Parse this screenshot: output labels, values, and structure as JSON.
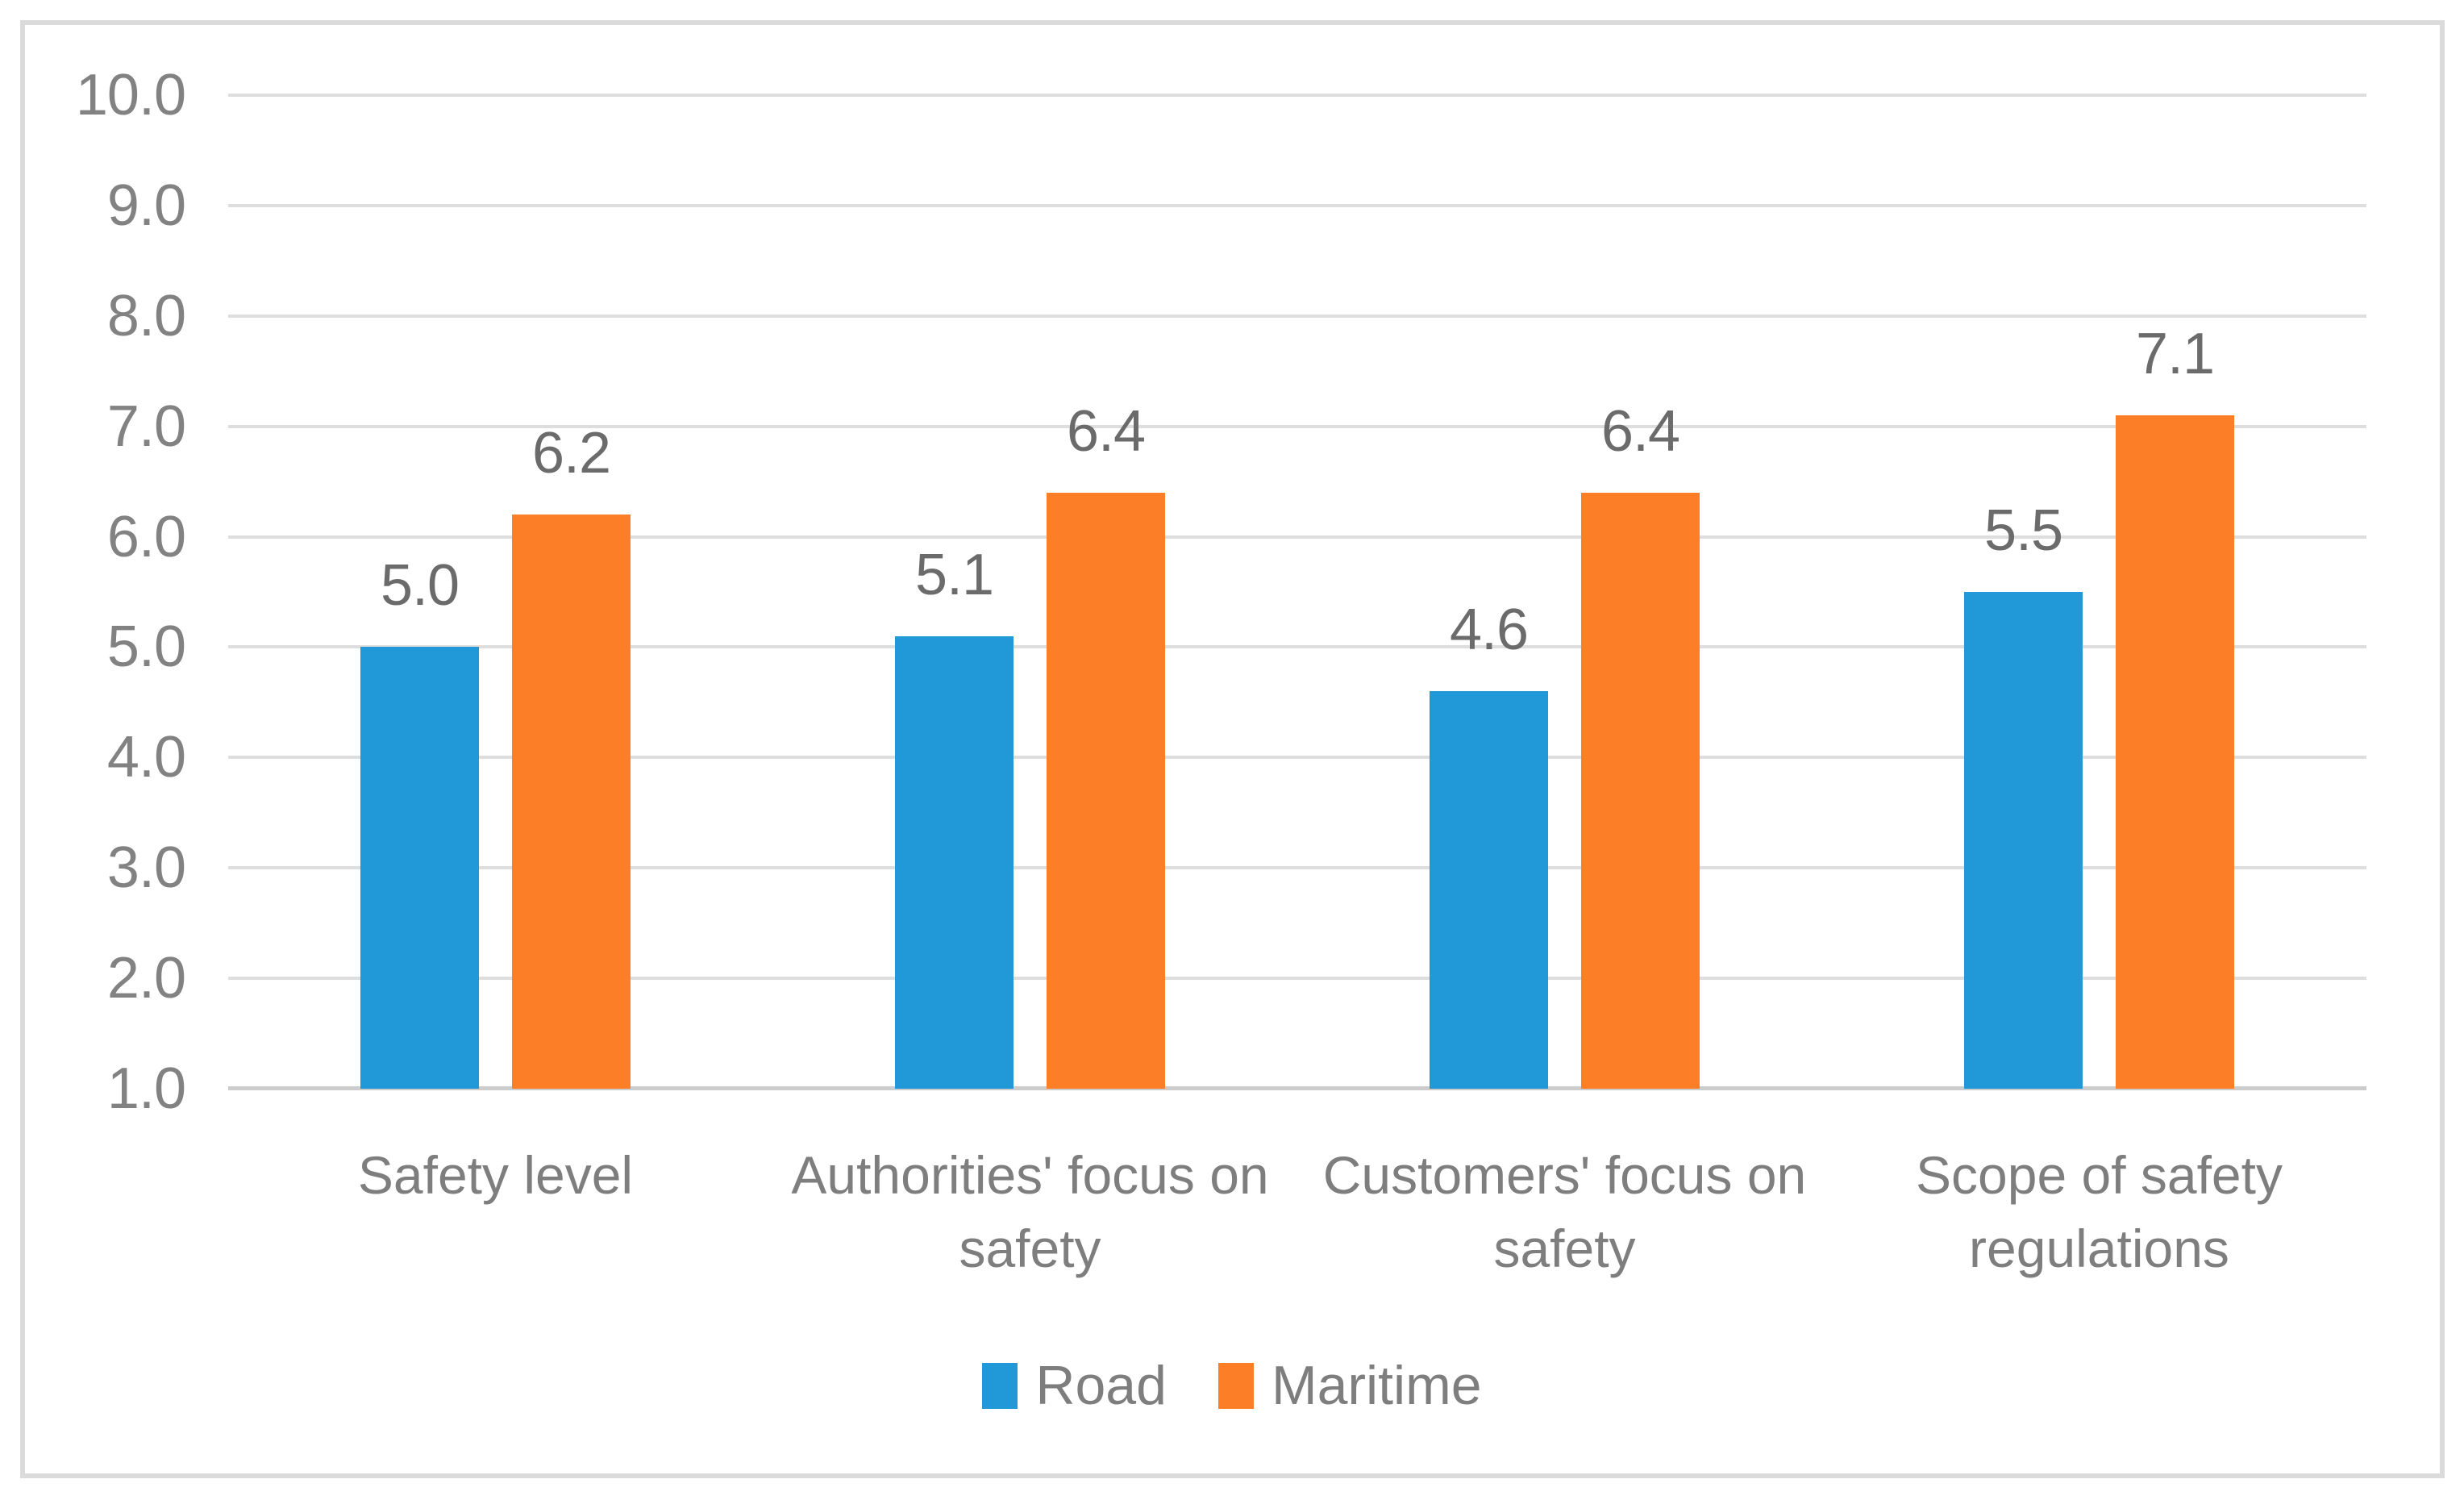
{
  "chart_data": {
    "type": "bar",
    "title": "",
    "xlabel": "",
    "ylabel": "",
    "categories": [
      {
        "label": "Safety level",
        "lines": [
          "Safety level"
        ]
      },
      {
        "label": "Authorities' focus on safety",
        "lines": [
          "Authorities' focus on",
          "safety"
        ]
      },
      {
        "label": "Customers' focus on safety",
        "lines": [
          "Customers' focus on",
          "safety"
        ]
      },
      {
        "label": "Scope of safety regulations",
        "lines": [
          "Scope of safety",
          "regulations"
        ]
      }
    ],
    "series": [
      {
        "name": "Road",
        "color": "#2199d8",
        "values": [
          5.0,
          5.1,
          4.6,
          5.5
        ],
        "data_labels": [
          "5.0",
          "5.1",
          "4.6",
          "5.5"
        ]
      },
      {
        "name": "Maritime",
        "color": "#fc7e26",
        "values": [
          6.2,
          6.4,
          6.4,
          7.1
        ],
        "data_labels": [
          "6.2",
          "6.4",
          "6.4",
          "7.1"
        ]
      }
    ],
    "ylim": [
      1.0,
      10.0
    ],
    "ytick_step": 1.0,
    "ytick_labels": [
      "10.0",
      "9.0",
      "8.0",
      "7.0",
      "6.0",
      "5.0",
      "4.0",
      "3.0",
      "2.0",
      "1.0"
    ],
    "grid": true,
    "gridline_color": "#dedede",
    "axis_line_color": "#cccccc",
    "frame_color": "#dbdbdb",
    "tick_text_color": "#828282",
    "data_label_color": "#6b6b6b",
    "legend_position": "bottom",
    "data_labels_visible": true
  }
}
